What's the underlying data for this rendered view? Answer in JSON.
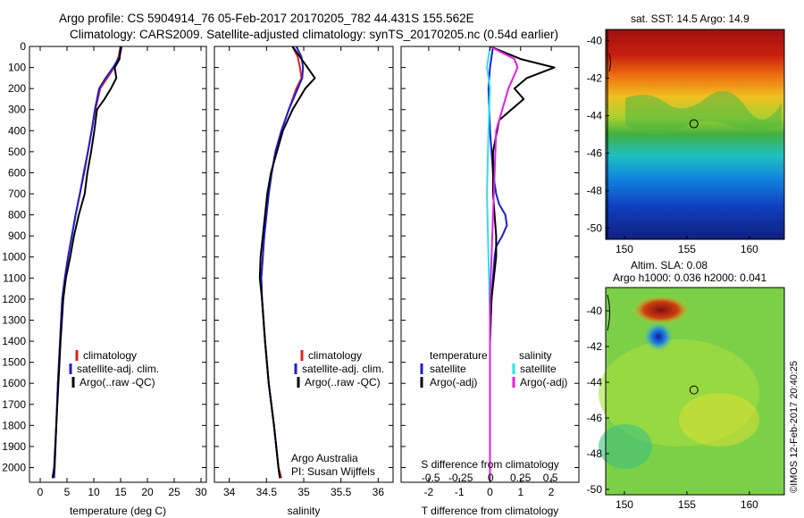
{
  "header": {
    "line1": "Argo profile: CS 5904914_76 05-Feb-2017 20170205_782 44.431S 155.562E",
    "line2": "Climatology: CARS2009. Satellite-adjusted climatology: synTS_20170205.nc (0.54d earlier)"
  },
  "colors": {
    "climatology": "#e02020",
    "satellite": "#1c1cd6",
    "argo": "#000000",
    "sal_satellite": "#2fe0e8",
    "sal_argo": "#e020e0"
  },
  "chart_data": [
    {
      "type": "line",
      "xlabel": "temperature (deg C)",
      "ylabel": "",
      "xlim": [
        -2,
        31
      ],
      "ylim": [
        2070,
        0
      ],
      "xticks": [
        0,
        5,
        10,
        15,
        20,
        25,
        30
      ],
      "yticks": [
        0,
        100,
        200,
        300,
        400,
        500,
        600,
        700,
        800,
        900,
        1000,
        1100,
        1200,
        1300,
        1400,
        1500,
        1600,
        1700,
        1800,
        1900,
        2000
      ],
      "legend": {
        "position": "lower-center",
        "entries": [
          "climatology",
          "satellite-adj. clim.",
          "Argo(..raw -QC)"
        ]
      },
      "series": [
        {
          "name": "climatology",
          "x": [
            15.0,
            14.6,
            13.8,
            12.5,
            11.2,
            10.3,
            9.6,
            8.9,
            8.1,
            7.4,
            6.6,
            5.9,
            5.2,
            4.6,
            4.1,
            3.7,
            3.3,
            3.0,
            2.7,
            2.5
          ],
          "y": [
            0,
            50,
            100,
            150,
            200,
            300,
            400,
            500,
            600,
            700,
            800,
            900,
            1000,
            1100,
            1200,
            1400,
            1600,
            1800,
            2000,
            2050
          ]
        },
        {
          "name": "satellite-adj. clim.",
          "x": [
            15.2,
            14.8,
            13.6,
            12.2,
            11.0,
            10.2,
            9.6,
            8.9,
            8.2,
            7.4,
            6.6,
            5.9,
            5.2,
            4.6,
            4.1,
            3.7,
            3.3,
            3.0,
            2.7,
            2.6
          ],
          "y": [
            0,
            50,
            100,
            150,
            200,
            300,
            400,
            500,
            600,
            700,
            800,
            900,
            1000,
            1100,
            1200,
            1400,
            1600,
            1800,
            2000,
            2050
          ]
        },
        {
          "name": "Argo(..raw -QC)",
          "x": [
            15.0,
            14.8,
            13.9,
            14.2,
            13.2,
            12.0,
            10.6,
            10.1,
            9.5,
            8.8,
            8.3,
            7.2,
            6.3,
            5.6,
            4.8,
            4.3,
            3.8,
            3.4,
            3.0,
            2.6,
            2.3
          ],
          "y": [
            0,
            60,
            100,
            150,
            200,
            250,
            300,
            400,
            500,
            600,
            700,
            800,
            900,
            1000,
            1100,
            1200,
            1400,
            1600,
            1800,
            2000,
            2050
          ]
        }
      ]
    },
    {
      "type": "line",
      "xlabel": "salinity",
      "ylabel": "",
      "xlim": [
        33.8,
        36.2
      ],
      "ylim": [
        2070,
        0
      ],
      "xticks": [
        34,
        34.5,
        35,
        35.5,
        36
      ],
      "legend": {
        "position": "lower-center",
        "entries": [
          "climatology",
          "satellite-adj. clim.",
          "Argo(..raw -QC)"
        ]
      },
      "annotation": [
        "Argo Australia",
        "PI: Susan Wijffels"
      ],
      "series": [
        {
          "name": "climatology",
          "x": [
            34.85,
            34.92,
            34.95,
            34.97,
            34.9,
            34.8,
            34.7,
            34.62,
            34.57,
            34.53,
            34.5,
            34.47,
            34.45,
            34.43,
            34.44,
            34.48,
            34.53,
            34.6,
            34.66,
            34.7
          ],
          "y": [
            0,
            50,
            100,
            150,
            200,
            300,
            400,
            500,
            600,
            700,
            800,
            900,
            1000,
            1100,
            1200,
            1400,
            1600,
            1800,
            2000,
            2050
          ]
        },
        {
          "name": "satellite-adj. clim.",
          "x": [
            34.9,
            34.97,
            34.99,
            34.98,
            34.92,
            34.8,
            34.7,
            34.62,
            34.57,
            34.53,
            34.5,
            34.47,
            34.45,
            34.43,
            34.44,
            34.48,
            34.53,
            34.6,
            34.66,
            34.68
          ],
          "y": [
            0,
            50,
            100,
            150,
            200,
            300,
            400,
            500,
            600,
            700,
            800,
            900,
            1000,
            1100,
            1200,
            1400,
            1600,
            1800,
            2000,
            2050
          ]
        },
        {
          "name": "Argo(..raw -QC)",
          "x": [
            34.85,
            34.95,
            35.05,
            35.15,
            35.02,
            34.85,
            34.72,
            34.64,
            34.56,
            34.51,
            34.48,
            34.45,
            34.42,
            34.41,
            34.44,
            34.48,
            34.53,
            34.6,
            34.66,
            34.68
          ],
          "y": [
            0,
            50,
            100,
            150,
            200,
            300,
            400,
            500,
            600,
            700,
            800,
            900,
            1000,
            1100,
            1200,
            1400,
            1600,
            1800,
            2000,
            2050
          ]
        }
      ]
    },
    {
      "type": "line",
      "xlabel": "T difference from climatology",
      "ylabel": "",
      "xlim": [
        -2.9,
        2.9
      ],
      "ylim": [
        2070,
        0
      ],
      "xticks": [
        -2,
        -1,
        0,
        1,
        2
      ],
      "top_axis_label": "S difference from climatology",
      "top_ticks": [
        "-0.5",
        "-0.25",
        "0",
        "0.25",
        "0.5"
      ],
      "legend": {
        "position": "lower-center",
        "headers": [
          "temperature",
          "salinity"
        ],
        "entries": [
          "satellite",
          "Argo(-adj)",
          "satellite",
          "Argo(-adj)"
        ]
      },
      "series": [
        {
          "name": "satellite",
          "x": [
            0.1,
            0.0,
            -0.05,
            0.0,
            0.1,
            0.2,
            0.3,
            0.5,
            0.55,
            0.4,
            0.2,
            0.15,
            0.1,
            0.05,
            0.0,
            0.0,
            0.0,
            0.0
          ],
          "y": [
            0,
            100,
            200,
            400,
            600,
            700,
            750,
            800,
            850,
            900,
            950,
            1000,
            1100,
            1200,
            1400,
            1600,
            1800,
            2050
          ]
        },
        {
          "name": "Argo(-adj)",
          "x": [
            0.0,
            1.0,
            2.1,
            1.2,
            0.8,
            1.1,
            0.3,
            0.1,
            0.1,
            0.2,
            0.2,
            0.05,
            0.0,
            0.0,
            0.0
          ],
          "y": [
            0,
            60,
            100,
            150,
            200,
            250,
            350,
            500,
            700,
            900,
            1000,
            1200,
            1400,
            1700,
            2050
          ]
        },
        {
          "name": "satellite",
          "x": [
            0.0,
            -0.1,
            0.0,
            -0.05,
            -0.1,
            -0.05,
            0.0,
            0.0,
            0.0,
            0.0
          ],
          "y": [
            0,
            100,
            200,
            400,
            700,
            1000,
            1300,
            1600,
            1900,
            2050
          ]
        },
        {
          "name": "Argo(-adj)",
          "x": [
            0.0,
            0.8,
            0.9,
            0.6,
            0.2,
            0.1,
            0.05,
            0.0,
            0.0
          ],
          "y": [
            0,
            60,
            100,
            200,
            400,
            800,
            1000,
            1200,
            2050
          ]
        }
      ]
    },
    {
      "type": "heatmap",
      "title": "sat. SST: 14.5  Argo: 14.9",
      "xlim": [
        148.5,
        162.8
      ],
      "ylim": [
        -50.6,
        -39.4
      ],
      "xticks": [
        150,
        155,
        160
      ],
      "yticks": [
        -40,
        -42,
        -44,
        -46,
        -48,
        -50
      ],
      "marker": {
        "x": 155.562,
        "y": -44.431
      }
    },
    {
      "type": "heatmap",
      "title": [
        "Altim. SLA: 0.08",
        "Argo h1000: 0.036 h2000: 0.041"
      ],
      "xlim": [
        148.5,
        162.8
      ],
      "ylim": [
        -50.3,
        -38.7
      ],
      "xticks": [
        150,
        155,
        160
      ],
      "yticks": [
        -40,
        -42,
        -44,
        -46,
        -48,
        -50
      ],
      "marker": {
        "x": 155.562,
        "y": -44.431
      }
    }
  ],
  "credit": "©IMOS 12-Feb-2017 20:40:25"
}
